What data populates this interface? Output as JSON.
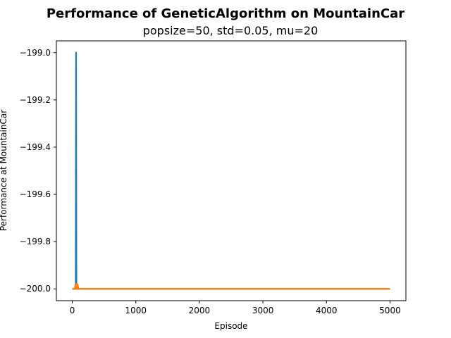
{
  "chart_data": {
    "type": "line",
    "title": "Performance of GeneticAlgorithm on MountainCar",
    "subtitle": "popsize=50, std=0.05, mu=20",
    "xlabel": "Episode",
    "ylabel": "Performance at MountainCar",
    "xlim": [
      -250,
      5250
    ],
    "ylim": [
      -200.05,
      -198.95
    ],
    "xticks": [
      0,
      1000,
      2000,
      3000,
      4000,
      5000
    ],
    "xtick_labels": [
      "0",
      "1000",
      "2000",
      "3000",
      "4000",
      "5000"
    ],
    "yticks": [
      -200.0,
      -199.8,
      -199.6,
      -199.4,
      -199.2,
      -199.0
    ],
    "ytick_labels": [
      "−200.0",
      "−199.8",
      "−199.6",
      "−199.4",
      "−199.2",
      "−199.0"
    ],
    "grid": false,
    "series": [
      {
        "color": "#1f77b4",
        "x": [
          0,
          50,
          55,
          60,
          65,
          70,
          80,
          5000
        ],
        "y": [
          -200.0,
          -200.0,
          -200.0,
          -199.0,
          -200.0,
          -200.0,
          -200.0,
          -200.0
        ]
      },
      {
        "color": "#ff7f0e",
        "x": [
          0,
          40,
          50,
          55,
          60,
          65,
          70,
          75,
          80,
          100,
          5000
        ],
        "y": [
          -200.0,
          -200.0,
          -199.98,
          -200.0,
          -199.98,
          -200.0,
          -199.98,
          -200.0,
          -199.98,
          -200.0,
          -200.0
        ]
      }
    ]
  }
}
